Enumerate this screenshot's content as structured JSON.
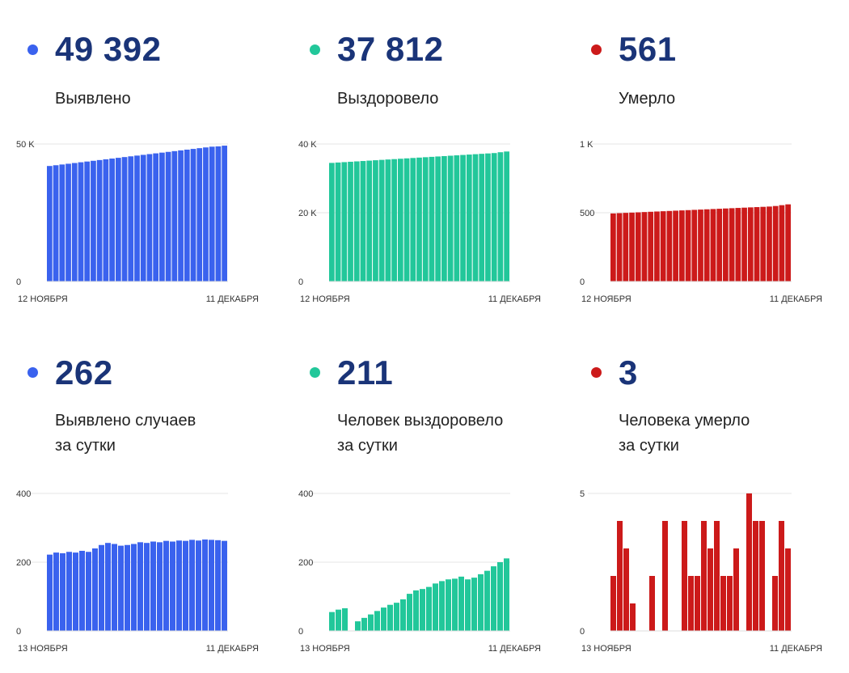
{
  "colors": {
    "blue": "#3a62ee",
    "teal": "#22c79a",
    "red": "#cc1a1a",
    "number": "#1a3478"
  },
  "panels": [
    {
      "value": "49 392",
      "label1": "Выявлено",
      "label2": "",
      "color": "#3a62ee"
    },
    {
      "value": "37 812",
      "label1": "Выздоровело",
      "label2": "",
      "color": "#22c79a"
    },
    {
      "value": "561",
      "label1": "Умерло",
      "label2": "",
      "color": "#cc1a1a"
    },
    {
      "value": "262",
      "label1": "Выявлено случаев",
      "label2": "за сутки",
      "color": "#3a62ee"
    },
    {
      "value": "211",
      "label1": "Человек выздоровело",
      "label2": "за сутки",
      "color": "#22c79a"
    },
    {
      "value": "3",
      "label1": "Человека умерло",
      "label2": "за сутки",
      "color": "#cc1a1a"
    }
  ],
  "chart_data": [
    {
      "type": "bar",
      "color": "#3a62ee",
      "x_start_label": "12 НОЯБРЯ",
      "x_end_label": "11 ДЕКАБРЯ",
      "ylim": [
        0,
        50000
      ],
      "yticks": [
        0,
        50000
      ],
      "ytick_labels": [
        "0",
        "50 K"
      ],
      "values": [
        42000,
        42270,
        42540,
        42810,
        43080,
        43350,
        43620,
        43890,
        44160,
        44430,
        44700,
        44970,
        45240,
        45510,
        45780,
        46050,
        46320,
        46590,
        46860,
        47130,
        47400,
        47670,
        47940,
        48210,
        48480,
        48750,
        49020,
        49130,
        49392
      ]
    },
    {
      "type": "bar",
      "color": "#22c79a",
      "x_start_label": "12 НОЯБРЯ",
      "x_end_label": "11 ДЕКАБРЯ",
      "ylim": [
        0,
        40000
      ],
      "yticks": [
        0,
        20000,
        40000
      ],
      "ytick_labels": [
        "0",
        "20 K",
        "40 K"
      ],
      "values": [
        34500,
        34610,
        34720,
        34830,
        34940,
        35050,
        35160,
        35270,
        35380,
        35490,
        35600,
        35710,
        35820,
        35930,
        36040,
        36150,
        36260,
        36370,
        36480,
        36590,
        36700,
        36810,
        36920,
        37030,
        37140,
        37250,
        37360,
        37600,
        37812
      ]
    },
    {
      "type": "bar",
      "color": "#cc1a1a",
      "x_start_label": "12 НОЯБРЯ",
      "x_end_label": "11 ДЕКАБРЯ",
      "ylim": [
        0,
        1000
      ],
      "yticks": [
        0,
        500,
        1000
      ],
      "ytick_labels": [
        "0",
        "500",
        "1 K"
      ],
      "values": [
        495,
        497,
        499,
        501,
        503,
        505,
        507,
        509,
        511,
        513,
        515,
        517,
        519,
        521,
        523,
        525,
        527,
        529,
        531,
        533,
        535,
        537,
        539,
        541,
        543,
        545,
        549,
        555,
        561
      ]
    },
    {
      "type": "bar",
      "color": "#3a62ee",
      "x_start_label": "13 НОЯБРЯ",
      "x_end_label": "11 ДЕКАБРЯ",
      "ylim": [
        0,
        400
      ],
      "yticks": [
        0,
        200,
        400
      ],
      "ytick_labels": [
        "0",
        "200",
        "400"
      ],
      "values": [
        222,
        228,
        226,
        230,
        228,
        233,
        230,
        240,
        250,
        256,
        253,
        248,
        250,
        253,
        258,
        256,
        260,
        258,
        262,
        260,
        263,
        262,
        265,
        263,
        266,
        265,
        264,
        262
      ]
    },
    {
      "type": "bar",
      "color": "#22c79a",
      "x_start_label": "13 НОЯБРЯ",
      "x_end_label": "11 ДЕКАБРЯ",
      "ylim": [
        0,
        400
      ],
      "yticks": [
        0,
        200,
        400
      ],
      "ytick_labels": [
        "0",
        "200",
        "400"
      ],
      "values": [
        55,
        62,
        66,
        0,
        28,
        38,
        48,
        58,
        68,
        76,
        82,
        92,
        108,
        118,
        122,
        128,
        138,
        145,
        150,
        152,
        158,
        150,
        155,
        165,
        175,
        188,
        200,
        211
      ]
    },
    {
      "type": "bar",
      "color": "#cc1a1a",
      "x_start_label": "13 НОЯБРЯ",
      "x_end_label": "11 ДЕКАБРЯ",
      "ylim": [
        0,
        5
      ],
      "yticks": [
        0,
        5
      ],
      "ytick_labels": [
        "0",
        "5"
      ],
      "values": [
        2,
        4,
        3,
        1,
        0,
        0,
        2,
        0,
        4,
        0,
        0,
        4,
        2,
        2,
        4,
        3,
        4,
        2,
        2,
        3,
        0,
        5,
        4,
        4,
        0,
        2,
        4,
        3
      ]
    }
  ]
}
